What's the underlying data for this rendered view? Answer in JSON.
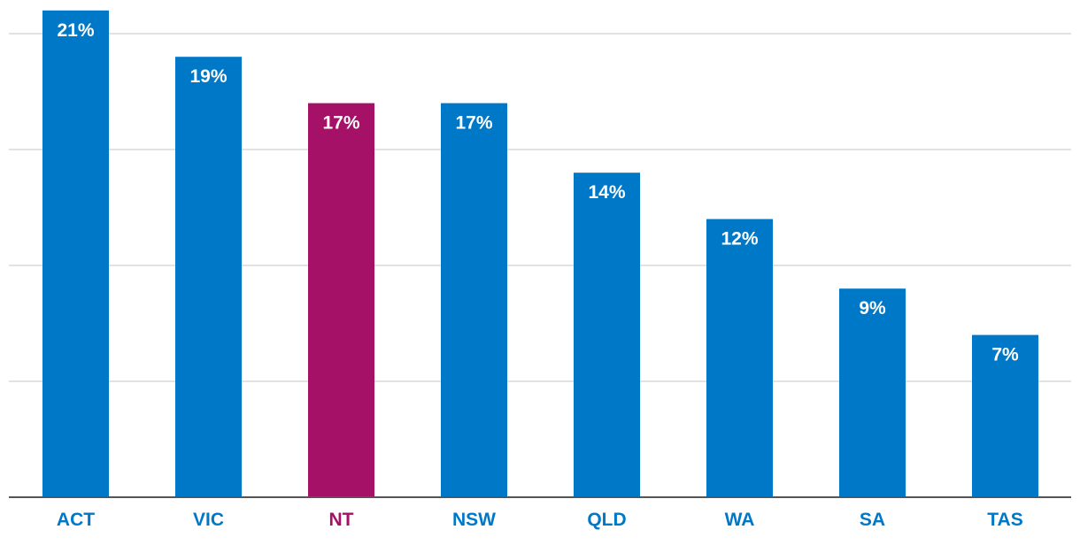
{
  "chart_data": {
    "type": "bar",
    "categories": [
      "ACT",
      "VIC",
      "NT",
      "NSW",
      "QLD",
      "WA",
      "SA",
      "TAS"
    ],
    "values": [
      21,
      19,
      17,
      17,
      14,
      12,
      9,
      7
    ],
    "value_labels": [
      "21%",
      "19%",
      "17%",
      "17%",
      "14%",
      "12%",
      "9%",
      "7%"
    ],
    "highlight": [
      "NT"
    ],
    "ylim": [
      0,
      21
    ],
    "gridlines": [
      5,
      10,
      15,
      20
    ],
    "grid": true,
    "colors": {
      "default": "#0078c8",
      "highlight": "#a51166"
    }
  }
}
